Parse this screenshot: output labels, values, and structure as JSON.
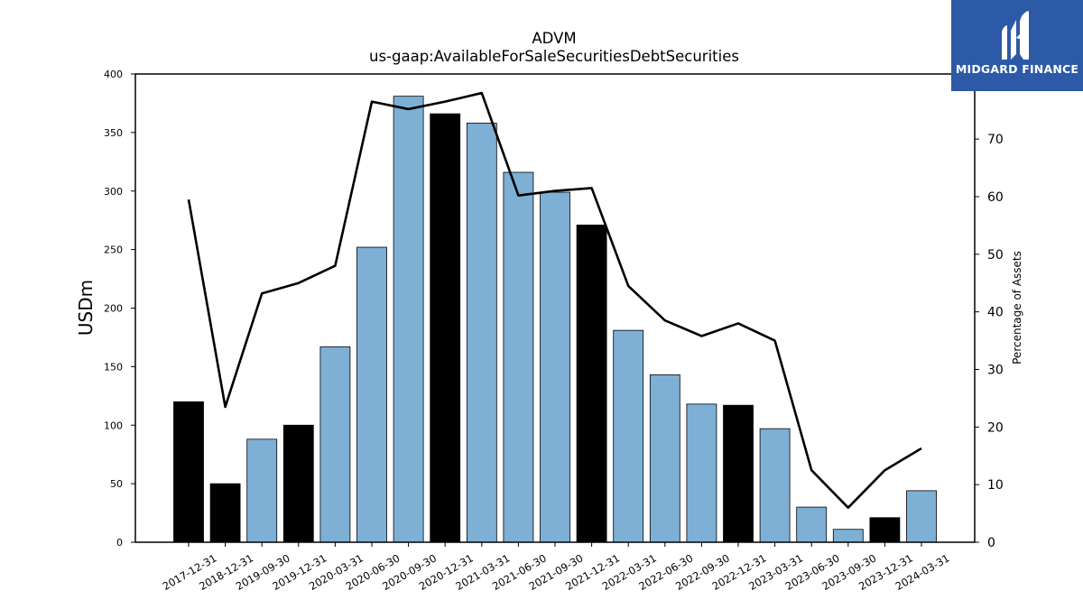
{
  "brand": {
    "name": "MIDGARD FINANCE",
    "color": "#2d5aa7",
    "icon": "midgard-logo-icon"
  },
  "chart_data": {
    "type": "bar",
    "title": "ADVM",
    "subtitle": "us-gaap:AvailableForSaleSecuritiesDebtSecurities",
    "ylabel": "USDm",
    "y2label": "Percentage of Assets",
    "ylim": [
      0,
      400
    ],
    "y2lim": [
      0,
      81.3
    ],
    "yticks": [
      0,
      50,
      100,
      150,
      200,
      250,
      300,
      350,
      400
    ],
    "y2ticks": [
      0,
      10,
      20,
      30,
      40,
      50,
      60,
      70
    ],
    "categories": [
      "2017-12-31",
      "2018-12-31",
      "2019-09-30",
      "2019-12-31",
      "2020-03-31",
      "2020-06-30",
      "2020-09-30",
      "2020-12-31",
      "2021-03-31",
      "2021-06-30",
      "2021-09-30",
      "2021-12-31",
      "2022-03-31",
      "2022-06-30",
      "2022-09-30",
      "2022-12-31",
      "2023-03-31",
      "2023-06-30",
      "2023-09-30",
      "2023-12-31",
      "2024-03-31"
    ],
    "series": [
      {
        "type": "bar",
        "values": [
          120,
          50,
          88,
          100,
          167,
          252,
          381,
          366,
          358,
          316,
          299,
          271,
          181,
          143,
          118,
          117,
          97,
          30,
          11,
          21,
          44
        ]
      },
      {
        "type": "line",
        "axis": "right",
        "values": [
          59.5,
          23.5,
          43.2,
          45,
          48,
          76.5,
          75.2,
          76.5,
          78,
          60.2,
          61,
          61.5,
          44.5,
          38.5,
          35.8,
          38,
          35,
          12.5,
          6,
          12.5,
          16.3
        ]
      }
    ],
    "bar_colors": [
      "#000000",
      "#000000",
      "#7eb0d5",
      "#000000",
      "#7eb0d5",
      "#7eb0d5",
      "#7eb0d5",
      "#000000",
      "#7eb0d5",
      "#7eb0d5",
      "#7eb0d5",
      "#000000",
      "#7eb0d5",
      "#7eb0d5",
      "#7eb0d5",
      "#000000",
      "#7eb0d5",
      "#7eb0d5",
      "#7eb0d5",
      "#000000",
      "#7eb0d5"
    ],
    "line_color": "#000000",
    "grid": false,
    "legend": "none"
  }
}
